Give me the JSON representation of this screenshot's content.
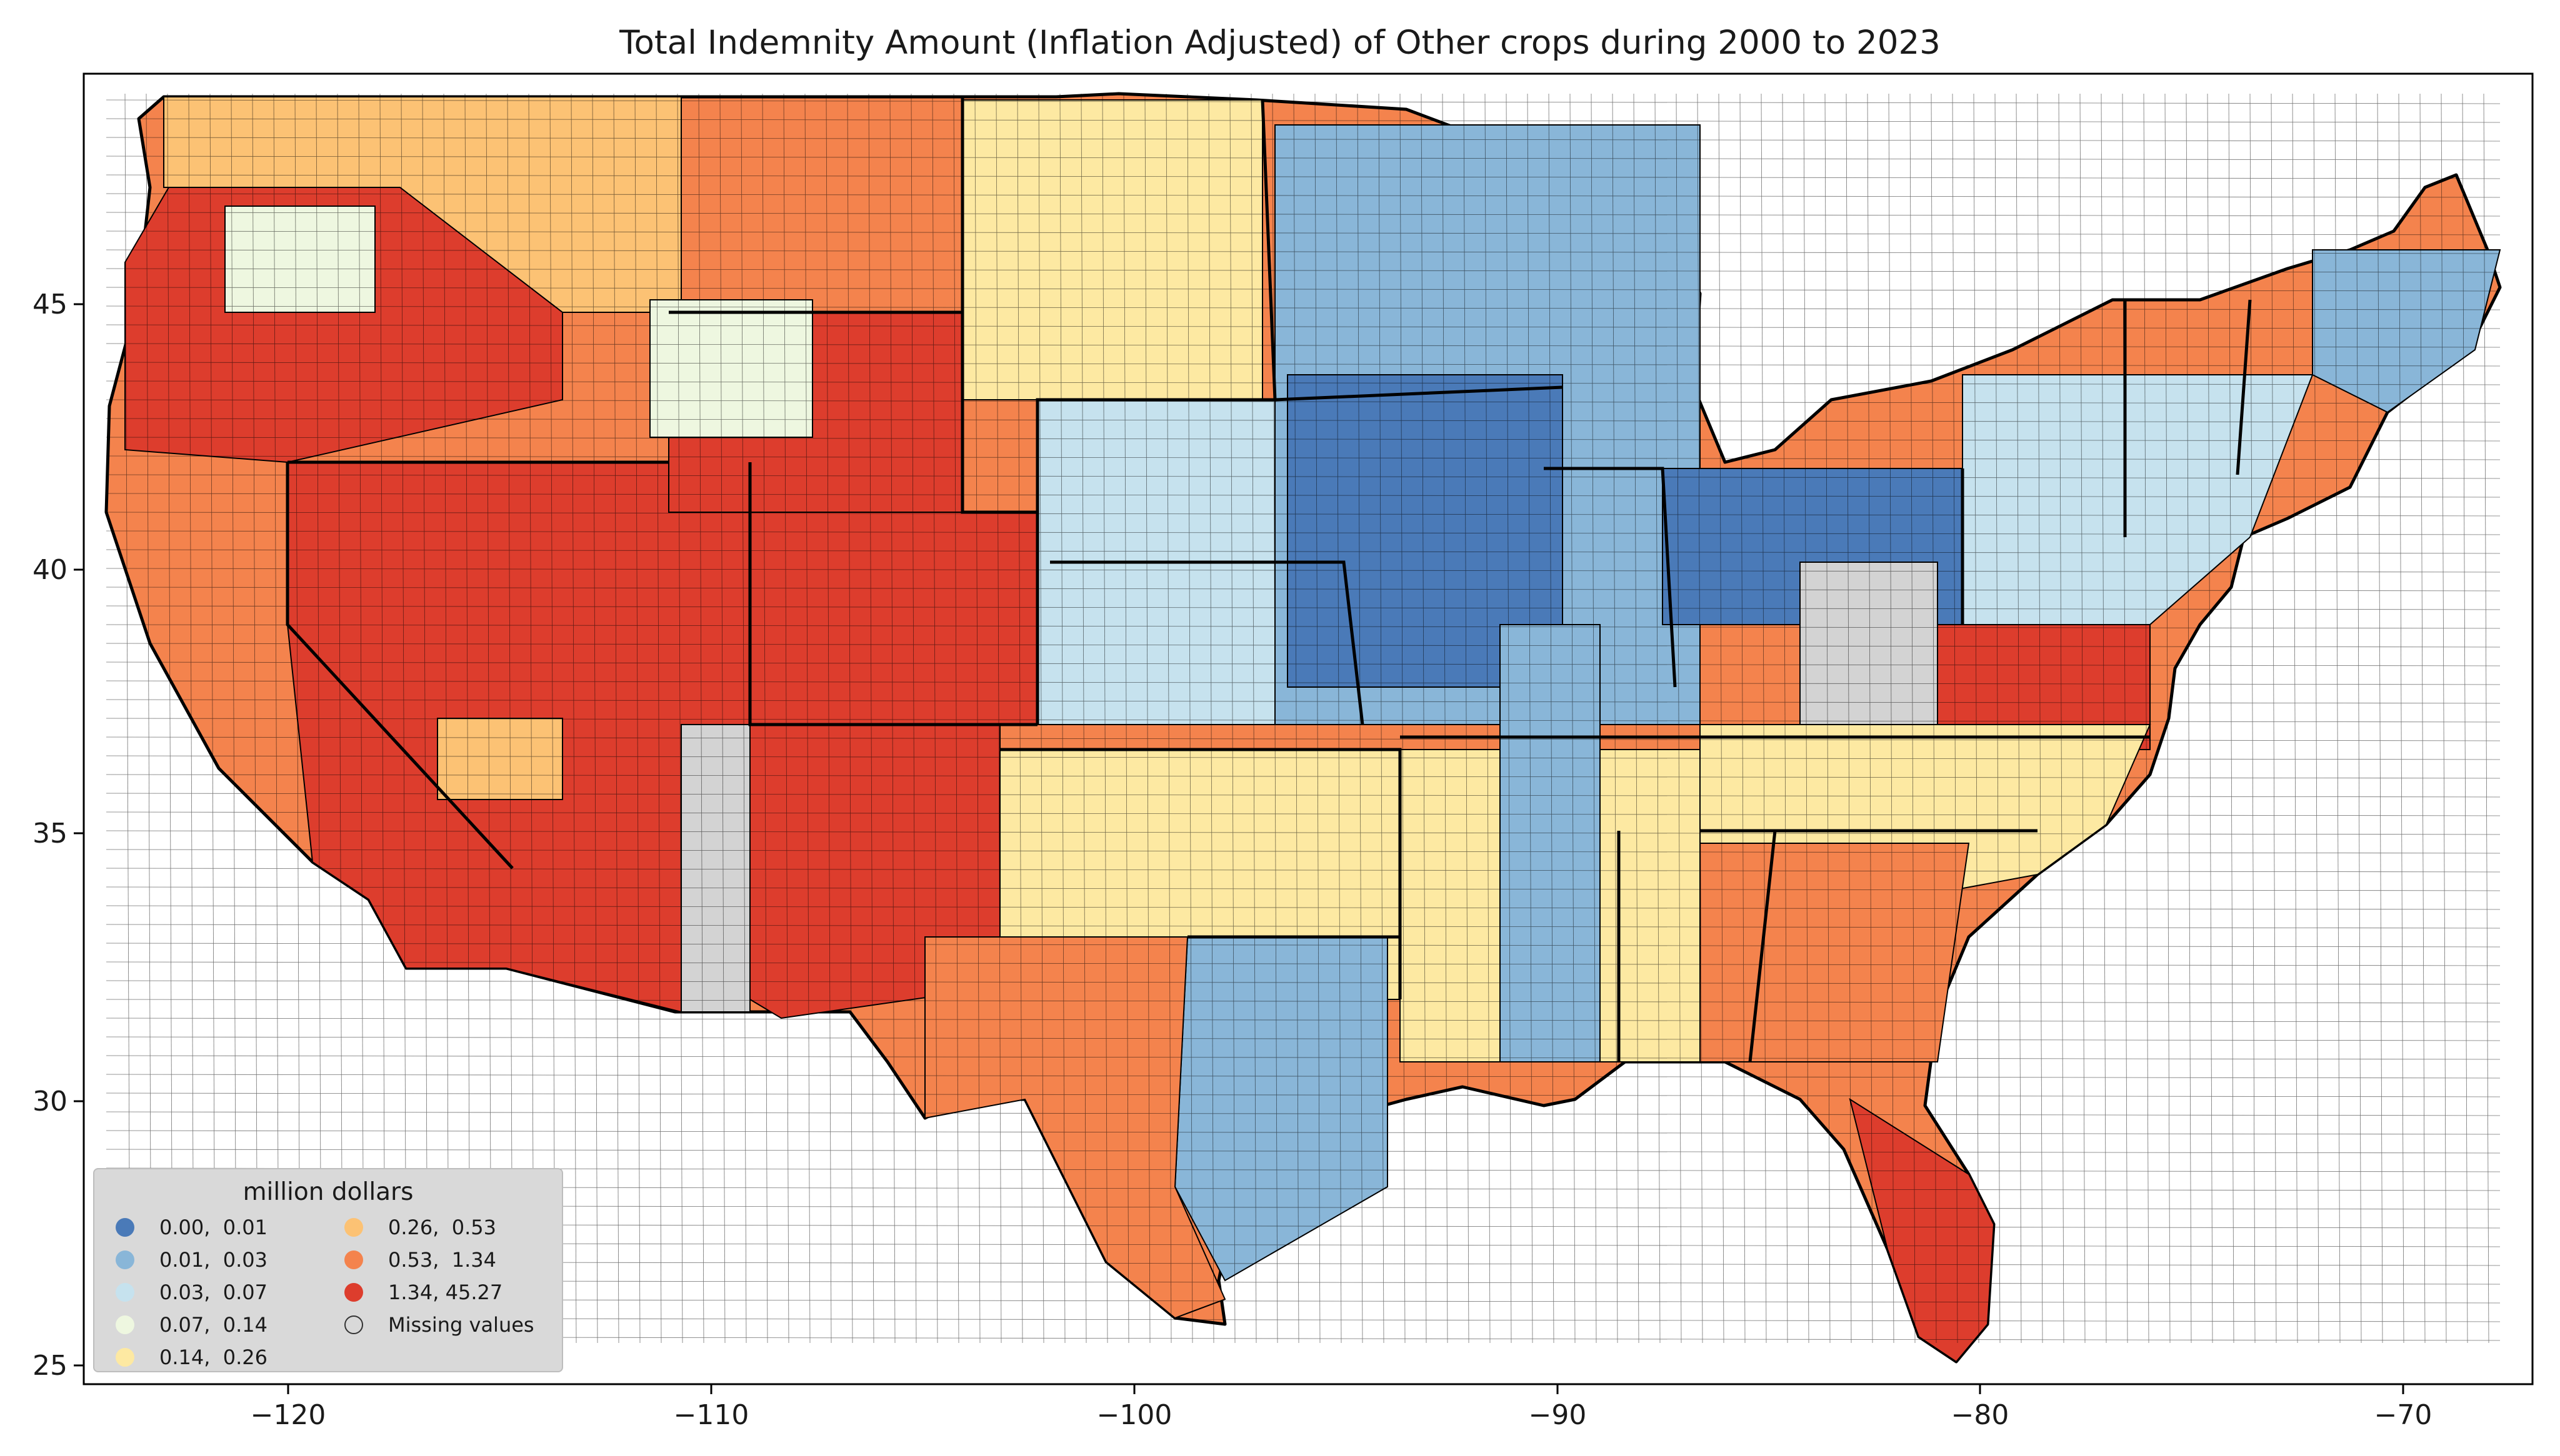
{
  "title": "Total Indemnity Amount  (Inflation Adjusted) of Other crops during 2000 to 2023",
  "x_ticks": [
    "−120",
    "−110",
    "−100",
    "−90",
    "−80",
    "−70"
  ],
  "y_ticks": [
    "25",
    "30",
    "35",
    "40",
    "45"
  ],
  "legend": {
    "title": "million dollars",
    "items": [
      {
        "label": "0.00,  0.01",
        "color": "#4a7ab8"
      },
      {
        "label": "0.01,  0.03",
        "color": "#89b6d8"
      },
      {
        "label": "0.03,  0.07",
        "color": "#c6e2ee"
      },
      {
        "label": "0.07,  0.14",
        "color": "#eef7e0"
      },
      {
        "label": "0.14,  0.26",
        "color": "#fde9a2"
      },
      {
        "label": "0.26,  0.53",
        "color": "#fcc274"
      },
      {
        "label": "0.53,  1.34",
        "color": "#f4834d"
      },
      {
        "label": "1.34, 45.27",
        "color": "#dd3d2d"
      },
      {
        "label": "Missing values",
        "color": "#d3d3d3"
      }
    ]
  }
}
